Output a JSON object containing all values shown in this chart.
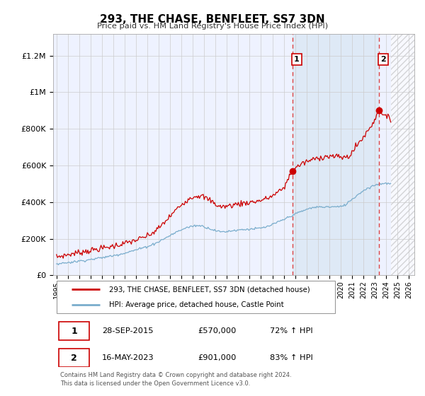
{
  "title": "293, THE CHASE, BENFLEET, SS7 3DN",
  "subtitle": "Price paid vs. HM Land Registry's House Price Index (HPI)",
  "ytick_values": [
    0,
    200000,
    400000,
    600000,
    800000,
    1000000,
    1200000
  ],
  "ylim": [
    0,
    1320000
  ],
  "xlim_start": 1994.7,
  "xlim_end": 2026.5,
  "xticks": [
    1995,
    1996,
    1997,
    1998,
    1999,
    2000,
    2001,
    2002,
    2003,
    2004,
    2005,
    2006,
    2007,
    2008,
    2009,
    2010,
    2011,
    2012,
    2013,
    2014,
    2015,
    2016,
    2017,
    2018,
    2019,
    2020,
    2021,
    2022,
    2023,
    2024,
    2025,
    2026
  ],
  "background_color": "#ffffff",
  "grid_color": "#cccccc",
  "plot_bg_color": "#eef2ff",
  "hatch_bg_color": "#e8e8e8",
  "shade_color": "#dce8f5",
  "red_line_color": "#cc0000",
  "blue_line_color": "#7aadcc",
  "vline_color": "#dd4444",
  "marker1_x": 2015.75,
  "marker1_y": 570000,
  "marker2_x": 2023.37,
  "marker2_y": 901000,
  "vline1_x": 2015.75,
  "vline2_x": 2023.37,
  "hatch_start": 2024.42,
  "legend_label_red": "293, THE CHASE, BENFLEET, SS7 3DN (detached house)",
  "legend_label_blue": "HPI: Average price, detached house, Castle Point",
  "table_row1": [
    "1",
    "28-SEP-2015",
    "£570,000",
    "72% ↑ HPI"
  ],
  "table_row2": [
    "2",
    "16-MAY-2023",
    "£901,000",
    "83% ↑ HPI"
  ],
  "footer": "Contains HM Land Registry data © Crown copyright and database right 2024.\nThis data is licensed under the Open Government Licence v3.0."
}
